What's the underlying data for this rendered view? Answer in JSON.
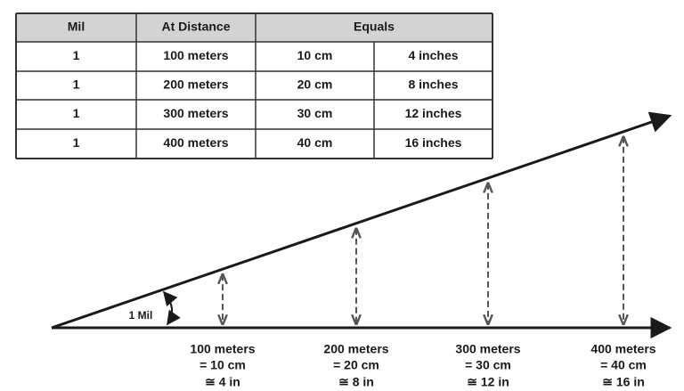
{
  "table": {
    "header": [
      "Mil",
      "At Distance",
      "Equals"
    ],
    "rows": [
      [
        "1",
        "100 meters",
        "10 cm",
        "4 inches"
      ],
      [
        "1",
        "200 meters",
        "20 cm",
        "8 inches"
      ],
      [
        "1",
        "300 meters",
        "30 cm",
        "12 inches"
      ],
      [
        "1",
        "400 meters",
        "40 cm",
        "16 inches"
      ]
    ]
  },
  "diagram": {
    "angle_label": "1 Mil",
    "markers": [
      {
        "distance": "100 meters",
        "cm": "= 10 cm",
        "inches": "≅ 4 in"
      },
      {
        "distance": "200 meters",
        "cm": "= 20 cm",
        "inches": "≅ 8 in"
      },
      {
        "distance": "300 meters",
        "cm": "= 30 cm",
        "inches": "≅ 12 in"
      },
      {
        "distance": "400 meters",
        "cm": "= 40 cm",
        "inches": "≅ 16 in"
      }
    ]
  }
}
